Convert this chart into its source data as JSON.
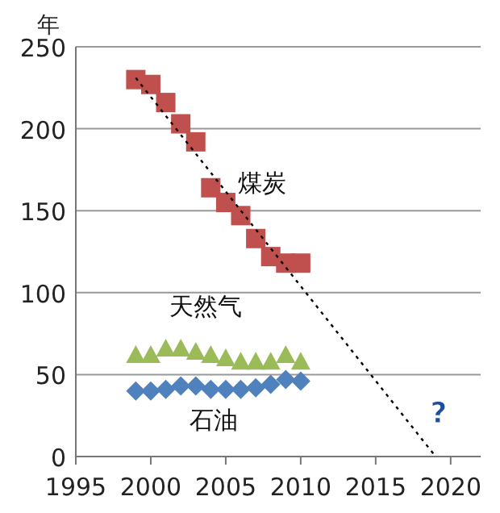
{
  "chart_data": {
    "type": "scatter",
    "ylabel": "年",
    "x": [
      1999,
      2000,
      2001,
      2002,
      2003,
      2004,
      2005,
      2006,
      2007,
      2008,
      2009,
      2010
    ],
    "series": [
      {
        "name": "煤炭",
        "color": "#c0504d",
        "marker": "square",
        "values": [
          230,
          227,
          216,
          203,
          192,
          164,
          155,
          147,
          133,
          122,
          118,
          118
        ]
      },
      {
        "name": "天然气",
        "color": "#9bbb59",
        "marker": "triangle",
        "values": [
          62,
          62,
          66,
          66,
          64,
          62,
          60,
          58,
          58,
          58,
          62,
          58
        ]
      },
      {
        "name": "石油",
        "color": "#4f81bd",
        "marker": "diamond",
        "values": [
          40,
          40,
          41,
          43,
          43,
          41,
          41,
          41,
          42,
          44,
          47,
          46
        ]
      },
      {
        "type": "line",
        "color": "#000000",
        "line_style": "dotted",
        "marker": "none",
        "x": [
          1999,
          2019
        ],
        "values": [
          231,
          0
        ]
      }
    ],
    "annotations": [
      "?"
    ],
    "xlim": [
      1995,
      2022
    ],
    "xticks": [
      1995,
      2000,
      2005,
      2010,
      2015,
      2020
    ],
    "ylim": [
      0,
      250
    ],
    "yticks": [
      0,
      50,
      100,
      150,
      200,
      250
    ],
    "grid": "y",
    "legend": false
  }
}
